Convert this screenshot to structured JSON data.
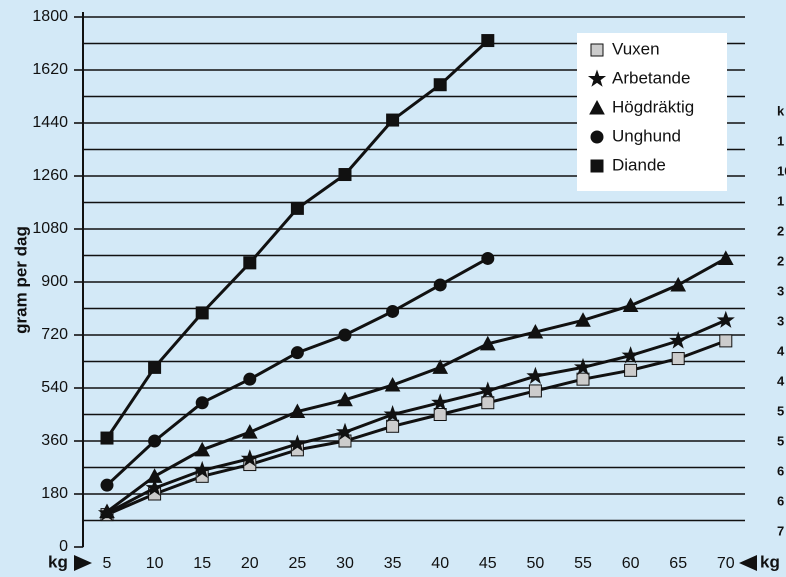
{
  "chart_data": {
    "type": "line",
    "y_label": "gram per dag",
    "x_label_left": "kg",
    "x_label_right": "kg",
    "categories": [
      "5",
      "10",
      "15",
      "20",
      "25",
      "30",
      "35",
      "40",
      "45",
      "50",
      "55",
      "60",
      "65",
      "70"
    ],
    "ylim": [
      0,
      1800
    ],
    "yticks": [
      0,
      180,
      360,
      540,
      720,
      900,
      1080,
      1260,
      1440,
      1620,
      1800
    ],
    "ygrid": [
      90,
      180,
      270,
      360,
      450,
      540,
      630,
      720,
      810,
      900,
      990,
      1080,
      1170,
      1260,
      1350,
      1440,
      1530,
      1620,
      1710,
      1800
    ],
    "series": [
      {
        "name": "Vuxen",
        "color": "#111111",
        "marker": "square",
        "marker_color": "#cccccc",
        "values": [
          110,
          180,
          240,
          280,
          330,
          360,
          410,
          450,
          490,
          530,
          570,
          600,
          640,
          700
        ]
      },
      {
        "name": "Arbetande",
        "color": "#111111",
        "marker": "star",
        "marker_color": "#111111",
        "values": [
          115,
          200,
          260,
          300,
          350,
          390,
          450,
          490,
          530,
          580,
          610,
          650,
          700,
          770
        ]
      },
      {
        "name": "Högdräktig",
        "color": "#111111",
        "marker": "triangle",
        "marker_color": "#111111",
        "values": [
          120,
          240,
          330,
          390,
          460,
          500,
          550,
          610,
          690,
          730,
          770,
          820,
          890,
          980
        ]
      },
      {
        "name": "Unghund",
        "color": "#111111",
        "marker": "circle",
        "marker_color": "#111111",
        "values": [
          210,
          360,
          490,
          570,
          660,
          720,
          800,
          890,
          980,
          null,
          null,
          null,
          null,
          null
        ]
      },
      {
        "name": "Diande",
        "color": "#111111",
        "marker": "square",
        "marker_color": "#111111",
        "values": [
          370,
          610,
          795,
          965,
          1150,
          1265,
          1450,
          1570,
          1720,
          null,
          null,
          null,
          null,
          null
        ]
      }
    ],
    "right_column": [
      "k",
      "1",
      "10",
      "1",
      "2",
      "2",
      "3",
      "3",
      "4",
      "4",
      "5",
      "5",
      "6",
      "6",
      "7"
    ]
  }
}
